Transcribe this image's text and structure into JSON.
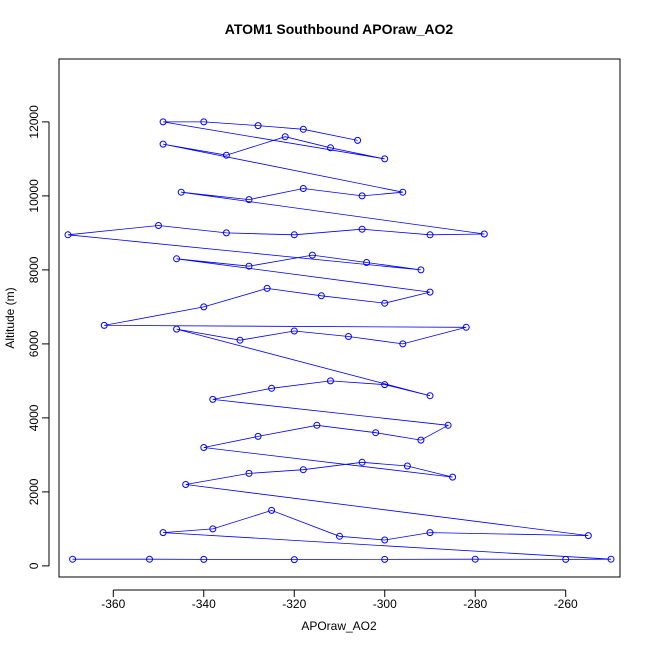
{
  "chart_data": {
    "type": "scatter",
    "title": "ATOM1 Southbound APOraw_AO2",
    "xlabel": "APOraw_AO2",
    "ylabel": "Altitude (m)",
    "xlim": [
      -372,
      -248
    ],
    "ylim": [
      -300,
      13700
    ],
    "x_ticks": [
      -360,
      -340,
      -320,
      -300,
      -280,
      -260
    ],
    "y_ticks": [
      0,
      2000,
      4000,
      6000,
      8000,
      10000,
      12000
    ],
    "grid": false,
    "legend": "none",
    "marker": "open-circle",
    "connected": true,
    "color": "#0000ff",
    "series": [
      {
        "values": [
          [
            -369,
            180
          ],
          [
            -352,
            180
          ],
          [
            -340,
            175
          ],
          [
            -320,
            170
          ],
          [
            -300,
            175
          ],
          [
            -280,
            180
          ],
          [
            -260,
            175
          ],
          [
            -250,
            180
          ],
          [
            -349,
            900
          ],
          [
            -338,
            1000
          ],
          [
            -325,
            1500
          ],
          [
            -310,
            800
          ],
          [
            -300,
            700
          ],
          [
            -290,
            900
          ],
          [
            -255,
            820
          ],
          [
            -344,
            2200
          ],
          [
            -330,
            2500
          ],
          [
            -318,
            2600
          ],
          [
            -305,
            2800
          ],
          [
            -295,
            2700
          ],
          [
            -285,
            2400
          ],
          [
            -340,
            3200
          ],
          [
            -328,
            3500
          ],
          [
            -315,
            3800
          ],
          [
            -302,
            3600
          ],
          [
            -292,
            3400
          ],
          [
            -286,
            3800
          ],
          [
            -338,
            4500
          ],
          [
            -325,
            4800
          ],
          [
            -312,
            5000
          ],
          [
            -300,
            4900
          ],
          [
            -290,
            4600
          ],
          [
            -346,
            6400
          ],
          [
            -332,
            6100
          ],
          [
            -320,
            6350
          ],
          [
            -308,
            6200
          ],
          [
            -296,
            6000
          ],
          [
            -282,
            6450
          ],
          [
            -362,
            6500
          ],
          [
            -340,
            7000
          ],
          [
            -326,
            7500
          ],
          [
            -314,
            7300
          ],
          [
            -300,
            7100
          ],
          [
            -290,
            7400
          ],
          [
            -346,
            8300
          ],
          [
            -330,
            8100
          ],
          [
            -316,
            8400
          ],
          [
            -304,
            8200
          ],
          [
            -292,
            8000
          ],
          [
            -370,
            8950
          ],
          [
            -350,
            9200
          ],
          [
            -335,
            9000
          ],
          [
            -320,
            8950
          ],
          [
            -305,
            9100
          ],
          [
            -290,
            8950
          ],
          [
            -278,
            8970
          ],
          [
            -345,
            10100
          ],
          [
            -330,
            9900
          ],
          [
            -318,
            10200
          ],
          [
            -305,
            10000
          ],
          [
            -296,
            10100
          ],
          [
            -349,
            11400
          ],
          [
            -335,
            11100
          ],
          [
            -322,
            11600
          ],
          [
            -312,
            11300
          ],
          [
            -300,
            11000
          ],
          [
            -349,
            12000
          ],
          [
            -340,
            12000
          ],
          [
            -328,
            11900
          ],
          [
            -318,
            11800
          ],
          [
            -306,
            11500
          ]
        ]
      }
    ]
  }
}
